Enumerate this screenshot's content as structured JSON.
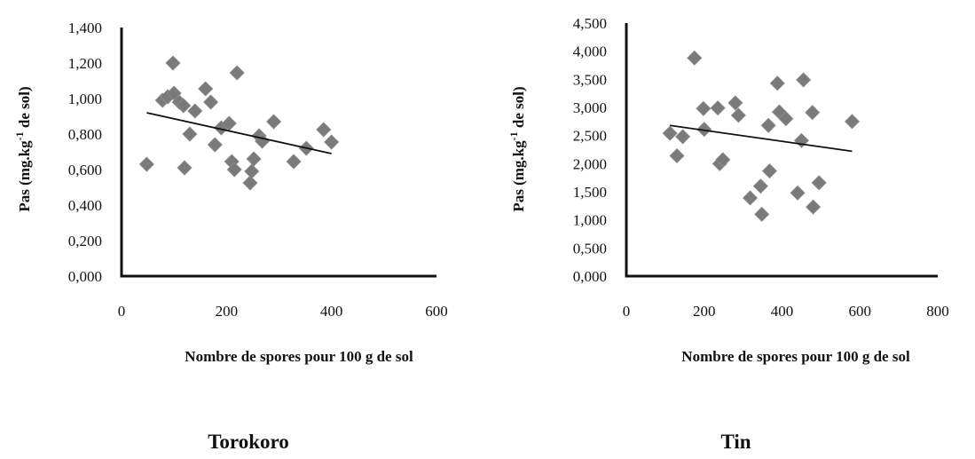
{
  "chart_data": [
    {
      "type": "scatter",
      "title": "Torokoro",
      "xlabel": "Nombre de spores pour 100 g de sol",
      "ylabel": "Pas (mg.kg-1 de sol)",
      "ylabel_parts": {
        "pre": "Pas (mg.kg",
        "sup": "-1",
        "post": " de sol)"
      },
      "xlim": [
        0,
        600
      ],
      "ylim": [
        0,
        1400
      ],
      "xticks": [
        0,
        200,
        400,
        600
      ],
      "xtick_labels": [
        "0",
        "200",
        "400",
        "600"
      ],
      "yticks": [
        0,
        200,
        400,
        600,
        800,
        1000,
        1200,
        1400
      ],
      "ytick_labels": [
        "0,000",
        "0,200",
        "0,400",
        "0,600",
        "0,800",
        "1,000",
        "1,200",
        "1,400"
      ],
      "grid": false,
      "marker": "diamond",
      "colors": {
        "marker": "#7a7a7a",
        "trendline": "#111111",
        "axis": "#111111"
      },
      "points": [
        {
          "x": 48,
          "y": 630
        },
        {
          "x": 78,
          "y": 990
        },
        {
          "x": 88,
          "y": 1010
        },
        {
          "x": 98,
          "y": 1200
        },
        {
          "x": 100,
          "y": 1030
        },
        {
          "x": 110,
          "y": 980
        },
        {
          "x": 118,
          "y": 960
        },
        {
          "x": 120,
          "y": 610
        },
        {
          "x": 130,
          "y": 800
        },
        {
          "x": 140,
          "y": 930
        },
        {
          "x": 160,
          "y": 1055
        },
        {
          "x": 170,
          "y": 980
        },
        {
          "x": 178,
          "y": 740
        },
        {
          "x": 190,
          "y": 835
        },
        {
          "x": 205,
          "y": 860
        },
        {
          "x": 210,
          "y": 645
        },
        {
          "x": 215,
          "y": 600
        },
        {
          "x": 220,
          "y": 1145
        },
        {
          "x": 245,
          "y": 525
        },
        {
          "x": 248,
          "y": 590
        },
        {
          "x": 252,
          "y": 660
        },
        {
          "x": 262,
          "y": 790
        },
        {
          "x": 268,
          "y": 760
        },
        {
          "x": 290,
          "y": 870
        },
        {
          "x": 328,
          "y": 645
        },
        {
          "x": 352,
          "y": 720
        },
        {
          "x": 385,
          "y": 825
        },
        {
          "x": 400,
          "y": 755
        }
      ],
      "trendline": {
        "x": [
          48,
          400
        ],
        "y": [
          920,
          690
        ]
      }
    },
    {
      "type": "scatter",
      "title": "Tin",
      "xlabel": "Nombre de spores pour 100 g de sol",
      "ylabel": "Pas (mg.kg-1 de sol)",
      "ylabel_parts": {
        "pre": "Pas (mg.kg",
        "sup": "-1",
        "post": " de sol)"
      },
      "xlim": [
        0,
        800
      ],
      "ylim": [
        0,
        4500
      ],
      "xticks": [
        0,
        200,
        400,
        600,
        800
      ],
      "xtick_labels": [
        "0",
        "200",
        "400",
        "600",
        "800"
      ],
      "yticks": [
        0,
        500,
        1000,
        1500,
        2000,
        2500,
        3000,
        3500,
        4000,
        4500
      ],
      "ytick_labels": [
        "0,000",
        "0,500",
        "1,000",
        "1,500",
        "2,000",
        "2,500",
        "3,000",
        "3,500",
        "4,000",
        "4,500"
      ],
      "grid": false,
      "marker": "diamond",
      "colors": {
        "marker": "#7a7a7a",
        "trendline": "#111111",
        "axis": "#111111"
      },
      "points": [
        {
          "x": 112,
          "y": 2540
        },
        {
          "x": 130,
          "y": 2140
        },
        {
          "x": 145,
          "y": 2480
        },
        {
          "x": 175,
          "y": 3880
        },
        {
          "x": 198,
          "y": 2980
        },
        {
          "x": 200,
          "y": 2610
        },
        {
          "x": 235,
          "y": 2990
        },
        {
          "x": 240,
          "y": 2000
        },
        {
          "x": 248,
          "y": 2070
        },
        {
          "x": 280,
          "y": 3080
        },
        {
          "x": 288,
          "y": 2860
        },
        {
          "x": 318,
          "y": 1390
        },
        {
          "x": 345,
          "y": 1600
        },
        {
          "x": 348,
          "y": 1100
        },
        {
          "x": 365,
          "y": 2680
        },
        {
          "x": 368,
          "y": 1870
        },
        {
          "x": 388,
          "y": 3430
        },
        {
          "x": 393,
          "y": 2920
        },
        {
          "x": 410,
          "y": 2800
        },
        {
          "x": 440,
          "y": 1480
        },
        {
          "x": 450,
          "y": 2410
        },
        {
          "x": 455,
          "y": 3490
        },
        {
          "x": 478,
          "y": 2910
        },
        {
          "x": 480,
          "y": 1230
        },
        {
          "x": 495,
          "y": 1660
        },
        {
          "x": 580,
          "y": 2750
        }
      ],
      "trendline": {
        "x": [
          112,
          580
        ],
        "y": [
          2680,
          2220
        ]
      }
    }
  ]
}
